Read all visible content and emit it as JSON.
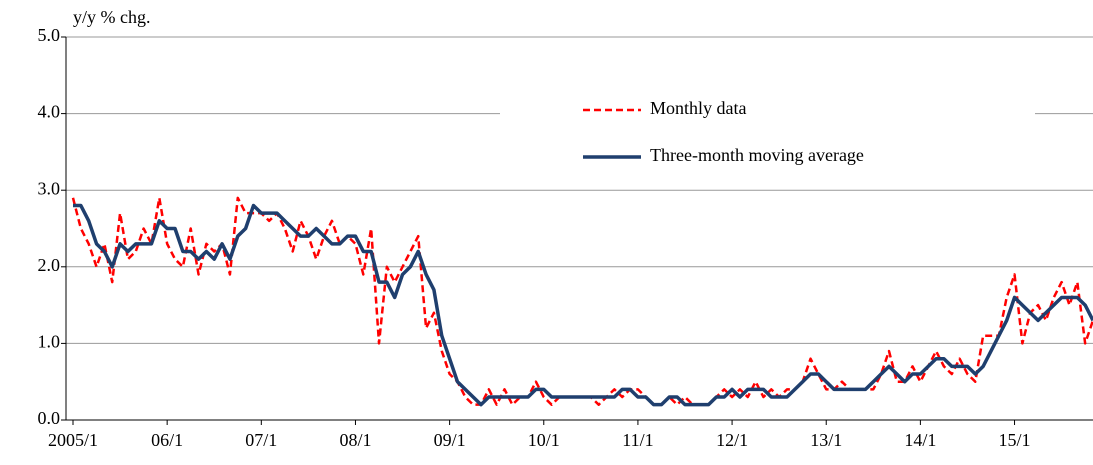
{
  "chart_data": {
    "type": "line",
    "y_label": "y/y % chg.",
    "categories": [
      "2005/1",
      null,
      null,
      null,
      null,
      null,
      null,
      null,
      null,
      null,
      null,
      null,
      "06/1",
      null,
      null,
      null,
      null,
      null,
      null,
      null,
      null,
      null,
      null,
      null,
      "07/1",
      null,
      null,
      null,
      null,
      null,
      null,
      null,
      null,
      null,
      null,
      null,
      "08/1",
      null,
      null,
      null,
      null,
      null,
      null,
      null,
      null,
      null,
      null,
      null,
      "09/1",
      null,
      null,
      null,
      null,
      null,
      null,
      null,
      null,
      null,
      null,
      null,
      "10/1",
      null,
      null,
      null,
      null,
      null,
      null,
      null,
      null,
      null,
      null,
      null,
      "11/1",
      null,
      null,
      null,
      null,
      null,
      null,
      null,
      null,
      null,
      null,
      null,
      "12/1",
      null,
      null,
      null,
      null,
      null,
      null,
      null,
      null,
      null,
      null,
      null,
      "13/1",
      null,
      null,
      null,
      null,
      null,
      null,
      null,
      null,
      null,
      null,
      null,
      "14/1",
      null,
      null,
      null,
      null,
      null,
      null,
      null,
      null,
      null,
      null,
      null,
      "15/1",
      null,
      null,
      null,
      null,
      null,
      null,
      null,
      null,
      null,
      null
    ],
    "series": [
      {
        "name": "Monthly data",
        "color": "#ff0000",
        "dashed": true,
        "values": [
          2.9,
          2.5,
          2.3,
          2.0,
          2.3,
          1.8,
          2.7,
          2.1,
          2.2,
          2.5,
          2.3,
          2.9,
          2.3,
          2.1,
          2.0,
          2.5,
          1.9,
          2.3,
          2.2,
          2.3,
          1.9,
          2.9,
          2.7,
          2.7,
          2.7,
          2.6,
          2.7,
          2.5,
          2.2,
          2.6,
          2.4,
          2.1,
          2.4,
          2.6,
          2.3,
          2.4,
          2.3,
          1.9,
          2.5,
          1.0,
          2.0,
          1.8,
          2.0,
          2.2,
          2.4,
          1.2,
          1.4,
          0.9,
          0.6,
          0.5,
          0.3,
          0.2,
          0.2,
          0.4,
          0.2,
          0.4,
          0.2,
          0.3,
          0.3,
          0.5,
          0.3,
          0.2,
          0.3,
          0.3,
          0.3,
          0.3,
          0.3,
          0.2,
          0.3,
          0.4,
          0.3,
          0.4,
          0.4,
          0.3,
          0.2,
          0.2,
          0.3,
          0.2,
          0.3,
          0.2,
          0.2,
          0.2,
          0.3,
          0.4,
          0.3,
          0.4,
          0.3,
          0.5,
          0.3,
          0.4,
          0.3,
          0.4,
          0.4,
          0.5,
          0.8,
          0.6,
          0.4,
          0.4,
          0.5,
          0.4,
          0.4,
          0.4,
          0.4,
          0.6,
          0.9,
          0.5,
          0.5,
          0.7,
          0.5,
          0.7,
          0.9,
          0.7,
          0.6,
          0.8,
          0.6,
          0.5,
          1.1,
          1.1,
          1.1,
          1.6,
          1.9,
          1.0,
          1.4,
          1.5,
          1.3,
          1.6,
          1.8,
          1.5,
          1.8,
          1.0,
          1.3
        ]
      },
      {
        "name": "Three-month moving average",
        "color": "#1f3f6e",
        "dashed": false,
        "values": [
          2.8,
          2.8,
          2.6,
          2.3,
          2.2,
          2.0,
          2.3,
          2.2,
          2.3,
          2.3,
          2.3,
          2.6,
          2.5,
          2.5,
          2.2,
          2.2,
          2.1,
          2.2,
          2.1,
          2.3,
          2.1,
          2.4,
          2.5,
          2.8,
          2.7,
          2.7,
          2.7,
          2.6,
          2.5,
          2.4,
          2.4,
          2.5,
          2.4,
          2.3,
          2.3,
          2.4,
          2.4,
          2.2,
          2.2,
          1.8,
          1.8,
          1.6,
          1.9,
          2.0,
          2.2,
          1.9,
          1.7,
          1.1,
          0.8,
          0.5,
          0.4,
          0.3,
          0.2,
          0.3,
          0.3,
          0.3,
          0.3,
          0.3,
          0.3,
          0.4,
          0.4,
          0.3,
          0.3,
          0.3,
          0.3,
          0.3,
          0.3,
          0.3,
          0.3,
          0.3,
          0.4,
          0.4,
          0.3,
          0.3,
          0.2,
          0.2,
          0.3,
          0.3,
          0.2,
          0.2,
          0.2,
          0.2,
          0.3,
          0.3,
          0.4,
          0.3,
          0.4,
          0.4,
          0.4,
          0.3,
          0.3,
          0.3,
          0.4,
          0.5,
          0.6,
          0.6,
          0.5,
          0.4,
          0.4,
          0.4,
          0.4,
          0.4,
          0.5,
          0.6,
          0.7,
          0.6,
          0.5,
          0.6,
          0.6,
          0.7,
          0.8,
          0.8,
          0.7,
          0.7,
          0.7,
          0.6,
          0.7,
          0.9,
          1.1,
          1.3,
          1.6,
          1.5,
          1.4,
          1.3,
          1.4,
          1.5,
          1.6,
          1.6,
          1.6,
          1.5,
          1.3
        ]
      }
    ],
    "ylim": [
      0,
      5
    ],
    "yticks": [
      {
        "value": 0,
        "label": "0.0"
      },
      {
        "value": 1,
        "label": "1.0"
      },
      {
        "value": 2,
        "label": "2.0"
      },
      {
        "value": 3,
        "label": "3.0"
      },
      {
        "value": 4,
        "label": "4.0"
      },
      {
        "value": 5,
        "label": "5.0"
      }
    ],
    "grid": true
  }
}
